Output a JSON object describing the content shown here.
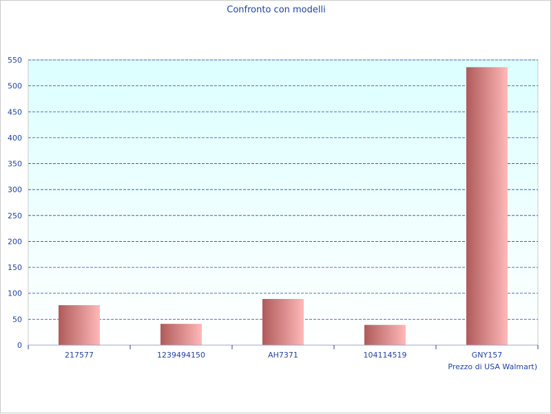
{
  "chart_data": {
    "type": "bar",
    "title": "Confronto con modelli",
    "xlabel": "Prezzo di USA Walmart)",
    "ylabel": "",
    "categories": [
      "217577",
      "1239494150",
      "AH7371",
      "104114519",
      "GNY157"
    ],
    "values": [
      77,
      41,
      89,
      39,
      536
    ],
    "ylim": [
      0,
      550
    ],
    "yticks": [
      0,
      50,
      100,
      150,
      200,
      250,
      300,
      350,
      400,
      450,
      500,
      550
    ],
    "grid": true,
    "legend": "none",
    "colors": {
      "bar_dark": "#b05a5a",
      "bar_light": "#ffb8b8",
      "plot_top": "#dcffff",
      "plot_bottom": "#ffffff",
      "grid": "#1f3f9f",
      "text": "#1f3f9f"
    }
  }
}
